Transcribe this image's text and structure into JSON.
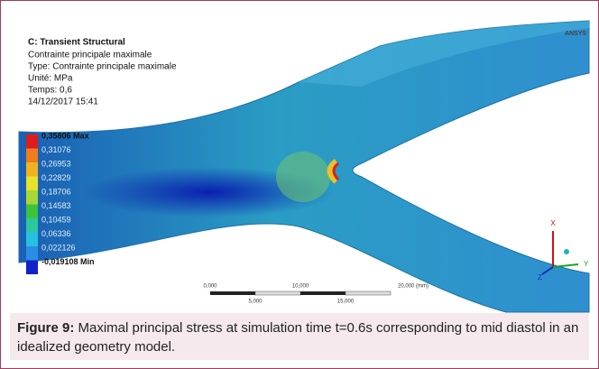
{
  "header": {
    "title": "C: Transient Structural",
    "lines": [
      "Contrainte principale maximale",
      "Type: Contrainte principale maximale",
      "Unité: MPa",
      "Temps: 0,6",
      "14/12/2017 15:41"
    ]
  },
  "legend": {
    "labels": [
      "0,35806 Max",
      "0,31076",
      "0,26953",
      "0,22829",
      "0,18706",
      "0,14583",
      "0,10459",
      "0,06336",
      "0,022126",
      "-0,019108 Min"
    ],
    "colors": [
      "#e01b1b",
      "#f07c1c",
      "#f0b31e",
      "#e8e228",
      "#a8d832",
      "#3cc43c",
      "#2cc89c",
      "#28c0e0",
      "#2a8ee8",
      "#1022c8"
    ]
  },
  "scale_bar": {
    "labels": [
      "0,000",
      "10,000",
      "5,000",
      "15,000",
      "20,000 (mm)"
    ]
  },
  "logo": "ANSYS",
  "axes": {
    "x": "X",
    "y": "Y",
    "z": "Z"
  },
  "caption": {
    "label": "Figure 9:",
    "text": " Maximal principal stress at simulation time t=0.6s corresponding to mid diastol in an idealized geometry model."
  }
}
